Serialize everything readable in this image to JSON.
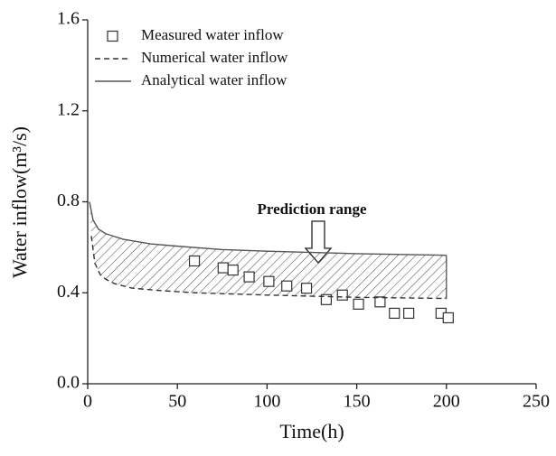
{
  "chart_data": {
    "type": "line",
    "x_label": "Time(h)",
    "y_label": "Water inflow(m³/s)",
    "annotation": "Prediction range",
    "xlim": [
      0,
      250
    ],
    "xticks": [
      0,
      50,
      100,
      150,
      200,
      250
    ],
    "ylim": [
      0,
      1.6
    ],
    "yticks": [
      {
        "value": 0,
        "label": "0.0"
      },
      0.4,
      0.8,
      1.2,
      1.6
    ],
    "legend": "upper left",
    "hatch_between": true,
    "series": [
      {
        "name": "Measured water inflow",
        "color": "#333333",
        "style": "square",
        "x": [
          59.5,
          75.5,
          81,
          90,
          101,
          111,
          122,
          133,
          142,
          151,
          163,
          171,
          179,
          197,
          201
        ],
        "values": [
          0.54,
          0.51,
          0.5,
          0.47,
          0.45,
          0.43,
          0.42,
          0.37,
          0.39,
          0.35,
          0.36,
          0.31,
          0.31,
          0.31,
          0.29
        ]
      },
      {
        "name": "Numerical water inflow",
        "color": "#333333",
        "style": "dashed",
        "x": [
          2,
          4,
          7,
          10,
          15,
          25,
          40,
          60,
          80,
          100,
          150,
          200
        ],
        "values": [
          0.65,
          0.53,
          0.48,
          0.46,
          0.44,
          0.42,
          0.41,
          0.4,
          0.395,
          0.39,
          0.38,
          0.375
        ]
      },
      {
        "name": "Analytical water inflow",
        "color": "#555555",
        "style": "solid",
        "x": [
          1,
          3,
          6,
          10,
          20,
          35,
          50,
          75,
          100,
          150,
          200
        ],
        "values": [
          0.8,
          0.72,
          0.68,
          0.66,
          0.635,
          0.615,
          0.605,
          0.59,
          0.583,
          0.572,
          0.565
        ]
      }
    ]
  }
}
